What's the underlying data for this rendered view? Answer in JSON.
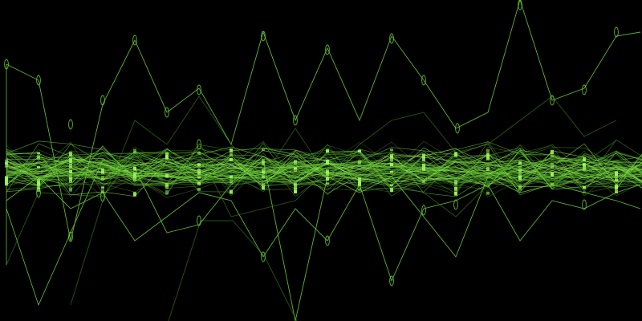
{
  "scene": {
    "subject": "abstract-green-waveform-lines",
    "background_color": "#000000",
    "line_color": "#6fd23a",
    "bright_line_color": "#9cf55a",
    "dim_line_color": "#3f8f22"
  }
}
